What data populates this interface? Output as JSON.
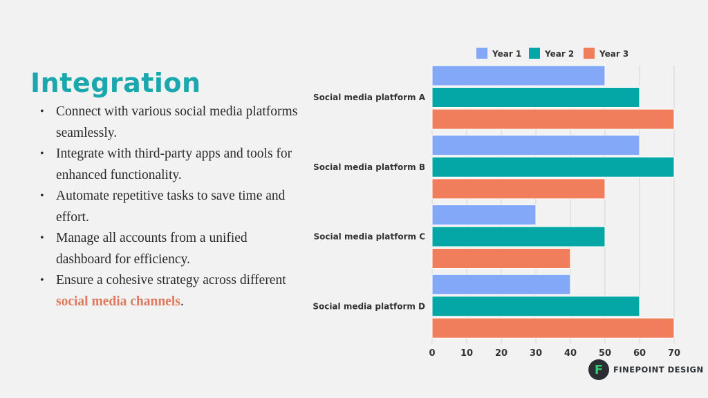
{
  "heading": "Integration",
  "bullets": [
    {
      "text": "Connect with various social media platforms seamlessly."
    },
    {
      "text": "Integrate with third-party apps and tools for enhanced functionality."
    },
    {
      "text": "Automate repetitive tasks to save time and effort."
    },
    {
      "text": "Manage all accounts from a unified dashboard for efficiency."
    },
    {
      "text": "Ensure a cohesive strategy across different ",
      "highlight": "social media channels",
      "suffix": "."
    }
  ],
  "colors": {
    "accent": "#1aa8ae",
    "highlight": "#e07a5f",
    "year1": "#82a8f7",
    "year2": "#05a6a6",
    "year3": "#f07e5c"
  },
  "logo": {
    "mark": "F",
    "text": "FINEPOINT DESIGN"
  },
  "chart_data": {
    "type": "bar",
    "orientation": "horizontal",
    "categories": [
      "Social media platform A",
      "Social media platform B",
      "Social media platform C",
      "Social media platform D"
    ],
    "series": [
      {
        "name": "Year 1",
        "values": [
          50,
          60,
          30,
          40
        ],
        "color": "#82a8f7"
      },
      {
        "name": "Year 2",
        "values": [
          60,
          70,
          50,
          60
        ],
        "color": "#05a6a6"
      },
      {
        "name": "Year 3",
        "values": [
          70,
          50,
          40,
          70
        ],
        "color": "#f07e5c"
      }
    ],
    "xticks": [
      0,
      10,
      20,
      30,
      40,
      50,
      60,
      70
    ],
    "xlim": [
      0,
      70
    ],
    "grid": true,
    "legend": "top"
  }
}
